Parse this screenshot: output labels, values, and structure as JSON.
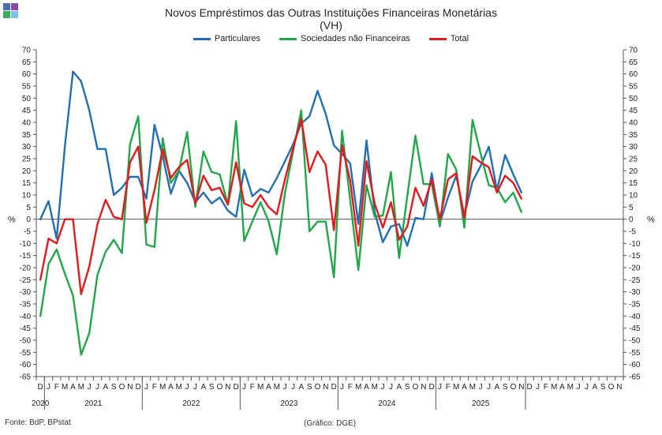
{
  "chart_data": {
    "type": "line",
    "title": "Novos Empréstimos das Outras Instituições Financeiras Monetárias",
    "subtitle": "(VH)",
    "ylabel_left": "%",
    "ylabel_right": "%",
    "ylim": [
      -65,
      70
    ],
    "ytick_step": 5,
    "grid": false,
    "legend_position": "top",
    "month_labels": [
      "D",
      "J",
      "F",
      "M",
      "A",
      "M",
      "J",
      "J",
      "A",
      "S",
      "O",
      "N",
      "D",
      "J",
      "F",
      "M",
      "A",
      "M",
      "J",
      "J",
      "A",
      "S",
      "O",
      "N",
      "D",
      "J",
      "F",
      "M",
      "A",
      "M",
      "J",
      "J",
      "A",
      "S",
      "O",
      "N",
      "D",
      "J",
      "F",
      "M",
      "A",
      "M",
      "J",
      "J",
      "A",
      "S",
      "O",
      "N",
      "D",
      "J",
      "F",
      "M",
      "A",
      "M",
      "J",
      "J",
      "A",
      "S",
      "O",
      "N",
      "D",
      "J",
      "F",
      "M",
      "A",
      "M",
      "J",
      "J",
      "A",
      "S",
      "O",
      "N"
    ],
    "year_labels": [
      {
        "label": "2020",
        "start": 0,
        "end": 0
      },
      {
        "label": "2021",
        "start": 1,
        "end": 12
      },
      {
        "label": "2022",
        "start": 13,
        "end": 24
      },
      {
        "label": "2023",
        "start": 25,
        "end": 36
      },
      {
        "label": "2024",
        "start": 37,
        "end": 48
      },
      {
        "label": "2025",
        "start": 49,
        "end": 59
      }
    ],
    "series": [
      {
        "name": "Particulares",
        "color": "#1f6fb5",
        "values": [
          0,
          7.5,
          -8,
          30,
          61,
          57,
          45,
          29,
          29,
          10,
          13,
          17.5,
          17.5,
          8.5,
          39,
          26,
          10.5,
          20,
          15,
          7,
          11,
          6.5,
          9,
          3.5,
          1,
          20.5,
          9.5,
          12.5,
          11,
          17,
          24,
          31,
          39.5,
          42.5,
          53,
          43.5,
          30.5,
          27,
          23,
          -2,
          32.5,
          3,
          -9.5,
          -3,
          -2,
          -11,
          0.5,
          0,
          19,
          -1.5,
          9,
          18,
          1.5,
          15.5,
          22,
          30,
          12,
          26.5,
          18.5,
          11
        ]
      },
      {
        "name": "Sociedades não Financeiras",
        "color": "#1fa848",
        "values": [
          -40,
          -18.5,
          -12.5,
          -22.5,
          -31.5,
          -56,
          -47,
          -23,
          -13.5,
          -8.5,
          -14,
          31,
          42.5,
          -10.5,
          -11.5,
          33.5,
          15,
          20,
          36,
          5,
          28,
          19.5,
          18.5,
          6,
          40.5,
          -9,
          -1,
          7,
          -1,
          -14.5,
          11,
          28,
          45,
          -5,
          -1,
          -1,
          -24,
          36.5,
          8,
          -21,
          14,
          1,
          1.5,
          19.5,
          -16,
          9.5,
          34.5,
          14.5,
          14.5,
          -3,
          27,
          20.5,
          -3.5,
          41,
          27,
          14,
          13,
          7,
          11,
          3
        ]
      },
      {
        "name": "Total",
        "color": "#e31a1c",
        "values": [
          -25,
          -8,
          -10,
          0,
          0,
          -31,
          -19.5,
          -2,
          8,
          1,
          0,
          23.5,
          30,
          -1.5,
          12,
          29,
          17,
          21.5,
          24.5,
          6.5,
          18,
          12,
          13,
          6,
          23.5,
          6.5,
          5,
          10,
          5,
          2,
          16.5,
          29.5,
          41.5,
          19.5,
          28,
          22.5,
          -4.5,
          30.5,
          16,
          -11,
          24,
          6.5,
          -3.5,
          7,
          -8.5,
          -3,
          13,
          5.5,
          16.5,
          0,
          16.5,
          19,
          0.5,
          26,
          23.5,
          21.5,
          11,
          18,
          15,
          8.5
        ]
      }
    ]
  },
  "logo_colors": [
    "#4a6fb8",
    "#8a4ab0",
    "#3cae5a",
    "#7ec0e8"
  ],
  "title_line1": "Novos Empréstimos das Outras Instituições Financeiras Monetárias",
  "title_line2": "(VH)",
  "legend": {
    "particulares": "Particulares",
    "sociedades": "Sociedades não Financeiras",
    "total": "Total"
  },
  "footer": {
    "source": "Fonte: BdP, BPstat",
    "credit": "(Gráfico: DGE)"
  }
}
